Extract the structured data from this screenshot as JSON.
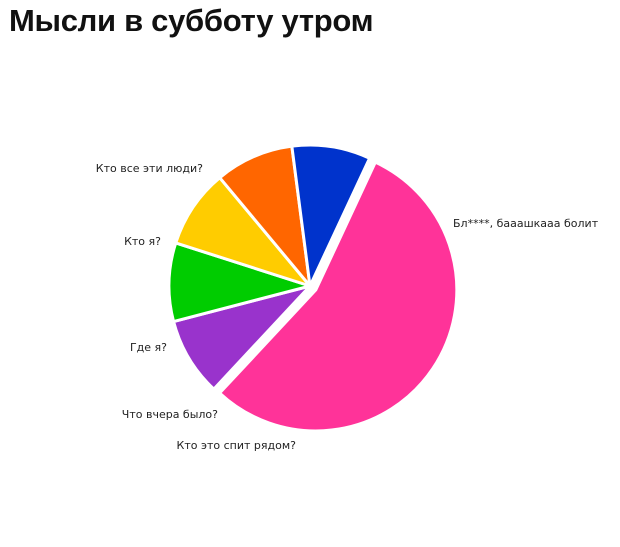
{
  "chart_data": {
    "type": "pie",
    "title": "Мысли в субботу утром",
    "slices": [
      {
        "label": "Бл****, бааашкааа болит",
        "value": 55,
        "color": "#FF3399"
      },
      {
        "label": "Кто это спит рядом?",
        "value": 9,
        "color": "#9933CC"
      },
      {
        "label": "Что вчера было?",
        "value": 9,
        "color": "#00CC00"
      },
      {
        "label": "Где я?",
        "value": 9,
        "color": "#FFCC00"
      },
      {
        "label": "Кто я?",
        "value": 9,
        "color": "#FF6600"
      },
      {
        "label": "Кто все эти люди?",
        "value": 9,
        "color": "#0033CC"
      }
    ]
  }
}
